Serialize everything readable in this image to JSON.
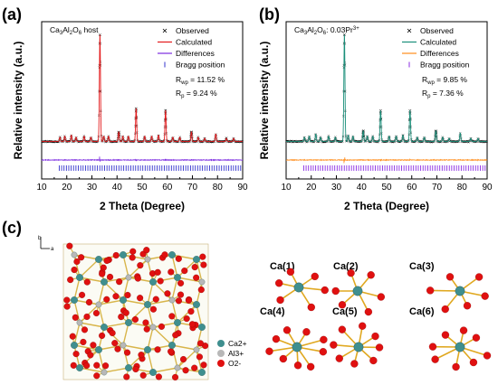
{
  "panel_labels": {
    "a": "(a)",
    "b": "(b)",
    "c": "(c)"
  },
  "chart_data": [
    {
      "type": "line",
      "panel": "(a)",
      "title": "Ca3Al2O6 host",
      "xlabel": "2 Theta (Degree)",
      "ylabel": "Relative intensity (a.u.)",
      "xlim": [
        10,
        90
      ],
      "xticks": [
        10,
        20,
        30,
        40,
        50,
        60,
        70,
        80,
        90
      ],
      "series": [
        {
          "name": "Observed",
          "color": "#000000",
          "marker": "x"
        },
        {
          "name": "Calculated",
          "color": "#e41a1c"
        },
        {
          "name": "Differences",
          "color": "#7b2be0"
        },
        {
          "name": "Bragg position",
          "color": "#3333cc",
          "marker": "|"
        }
      ],
      "peaks": [
        {
          "x": 17.3,
          "y": 0.04
        },
        {
          "x": 19.2,
          "y": 0.05
        },
        {
          "x": 21.8,
          "y": 0.06
        },
        {
          "x": 23.7,
          "y": 0.04
        },
        {
          "x": 26.9,
          "y": 0.05
        },
        {
          "x": 29.6,
          "y": 0.04
        },
        {
          "x": 33.2,
          "y": 1.0
        },
        {
          "x": 34.7,
          "y": 0.05
        },
        {
          "x": 36.6,
          "y": 0.05
        },
        {
          "x": 40.7,
          "y": 0.09
        },
        {
          "x": 42.3,
          "y": 0.05
        },
        {
          "x": 44.5,
          "y": 0.05
        },
        {
          "x": 47.6,
          "y": 0.31
        },
        {
          "x": 51.0,
          "y": 0.05
        },
        {
          "x": 53.8,
          "y": 0.05
        },
        {
          "x": 56.5,
          "y": 0.06
        },
        {
          "x": 59.3,
          "y": 0.29
        },
        {
          "x": 62.2,
          "y": 0.04
        },
        {
          "x": 65.0,
          "y": 0.04
        },
        {
          "x": 69.6,
          "y": 0.09
        },
        {
          "x": 72.3,
          "y": 0.04
        },
        {
          "x": 74.9,
          "y": 0.03
        },
        {
          "x": 79.3,
          "y": 0.07
        },
        {
          "x": 83.5,
          "y": 0.03
        },
        {
          "x": 86.4,
          "y": 0.03
        }
      ],
      "annotations": {
        "rwp": "R",
        "rwp_sub": "wp",
        "rwp_value": " = 11.52 %",
        "rp": "R",
        "rp_sub": "p",
        "rp_value": " = 9.24 %"
      }
    },
    {
      "type": "line",
      "panel": "(b)",
      "title": "Ca3Al2O6: 0.03Pr3+",
      "xlabel": "2 Theta (Degree)",
      "ylabel": "Relative intensity (a.u.)",
      "xlim": [
        10,
        90
      ],
      "xticks": [
        10,
        20,
        30,
        40,
        50,
        60,
        70,
        80,
        90
      ],
      "series": [
        {
          "name": "Observed",
          "color": "#000000",
          "marker": "x"
        },
        {
          "name": "Calculated",
          "color": "#1a8f7a"
        },
        {
          "name": "Differences",
          "color": "#ff8c1a"
        },
        {
          "name": "Bragg position",
          "color": "#8a2be2",
          "marker": "|"
        }
      ],
      "peaks": [
        {
          "x": 17.3,
          "y": 0.04
        },
        {
          "x": 19.2,
          "y": 0.05
        },
        {
          "x": 21.8,
          "y": 0.07
        },
        {
          "x": 23.7,
          "y": 0.04
        },
        {
          "x": 26.9,
          "y": 0.05
        },
        {
          "x": 29.6,
          "y": 0.04
        },
        {
          "x": 33.2,
          "y": 1.0
        },
        {
          "x": 34.7,
          "y": 0.06
        },
        {
          "x": 36.6,
          "y": 0.05
        },
        {
          "x": 40.7,
          "y": 0.1
        },
        {
          "x": 42.3,
          "y": 0.05
        },
        {
          "x": 44.5,
          "y": 0.05
        },
        {
          "x": 47.6,
          "y": 0.29
        },
        {
          "x": 51.0,
          "y": 0.05
        },
        {
          "x": 53.8,
          "y": 0.05
        },
        {
          "x": 56.5,
          "y": 0.06
        },
        {
          "x": 59.3,
          "y": 0.29
        },
        {
          "x": 62.2,
          "y": 0.04
        },
        {
          "x": 65.0,
          "y": 0.04
        },
        {
          "x": 69.6,
          "y": 0.1
        },
        {
          "x": 72.3,
          "y": 0.04
        },
        {
          "x": 74.9,
          "y": 0.03
        },
        {
          "x": 79.3,
          "y": 0.08
        },
        {
          "x": 83.5,
          "y": 0.03
        },
        {
          "x": 86.4,
          "y": 0.03
        }
      ],
      "annotations": {
        "rwp": "R",
        "rwp_sub": "wp",
        "rwp_value": " = 9.85 %",
        "rp": "R",
        "rp_sub": "p",
        "rp_value": " = 7.36 %"
      }
    }
  ],
  "structure": {
    "axis_b": "b",
    "axis_a": "a",
    "atom_legend": [
      {
        "label": "Ca2+",
        "color": "#3f8f8f"
      },
      {
        "label": "Al3+",
        "color": "#b8b8b8"
      },
      {
        "label": "O2-",
        "color": "#e01010"
      }
    ],
    "sites": [
      "Ca(1)",
      "Ca(2)",
      "Ca(3)",
      "Ca(4)",
      "Ca(5)",
      "Ca(6)"
    ]
  }
}
